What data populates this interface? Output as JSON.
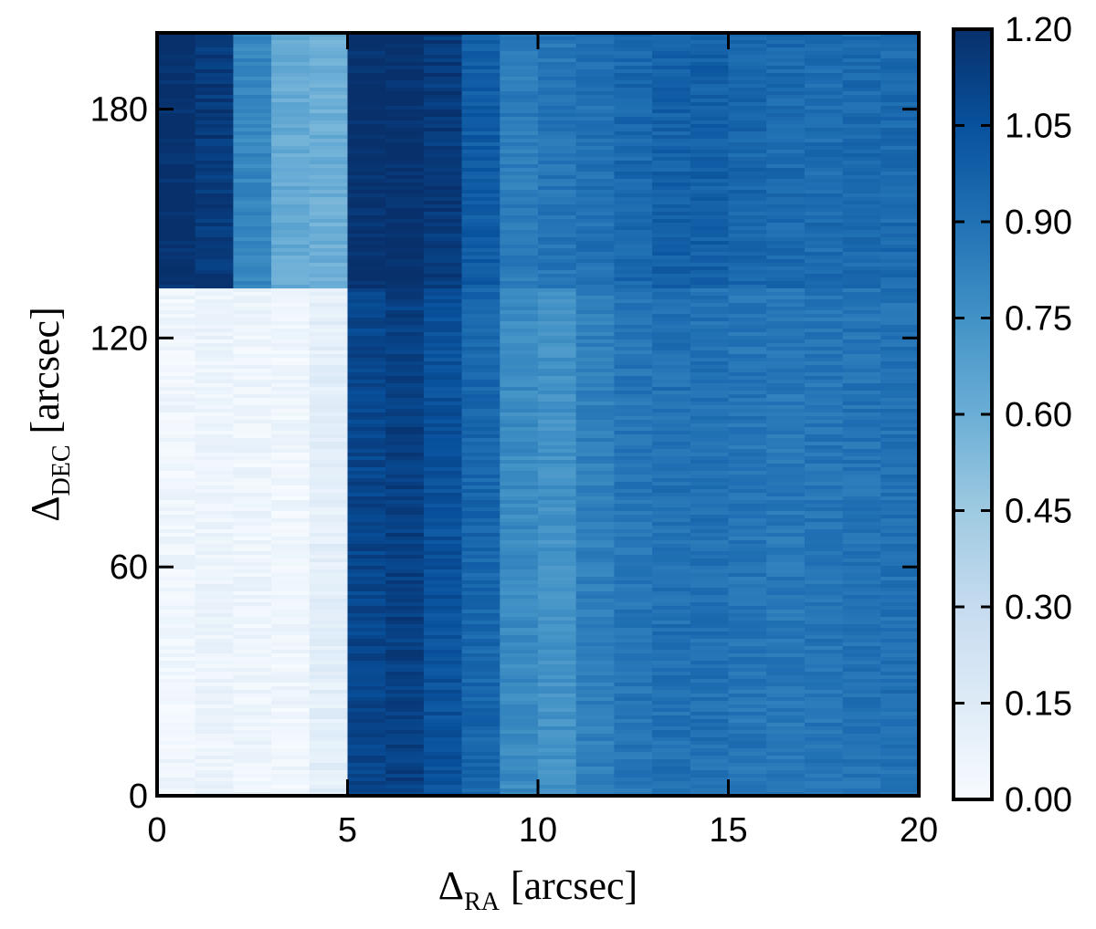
{
  "chart_data": {
    "type": "heatmap",
    "title": "",
    "xlabel": {
      "main": "Δ",
      "sub": "RA",
      "unit": "[arcsec]"
    },
    "ylabel": {
      "main": "Δ",
      "sub": "DEC",
      "unit": "[arcsec]"
    },
    "xlim": [
      0,
      20
    ],
    "ylim": [
      0,
      200
    ],
    "x_ticks": [
      0,
      5,
      10,
      15,
      20
    ],
    "x_tick_labels": [
      "0",
      "5",
      "10",
      "15",
      "20"
    ],
    "y_ticks": [
      0,
      60,
      120,
      180
    ],
    "y_tick_labels": [
      "0",
      "60",
      "120",
      "180"
    ],
    "colorbar": {
      "range": [
        0.0,
        1.2
      ],
      "ticks": [
        0.0,
        0.15,
        0.3,
        0.45,
        0.6,
        0.75,
        0.9,
        1.05,
        1.2
      ],
      "tick_labels": [
        "0.00",
        "0.15",
        "0.30",
        "0.45",
        "0.60",
        "0.75",
        "0.90",
        "1.05",
        "1.20"
      ],
      "colormap": "Blues",
      "colors": [
        "#f7fbff",
        "#deebf7",
        "#c6dbef",
        "#9ecae1",
        "#6baed6",
        "#4292c6",
        "#2171b5",
        "#08519c",
        "#08306b"
      ]
    },
    "columns_x": [
      0.5,
      1.5,
      2.5,
      3.5,
      4.5,
      5.5,
      6.5,
      7.5,
      8.5,
      9.5,
      10.5,
      11.5,
      12.5,
      13.5,
      14.5,
      15.5,
      16.5,
      17.5,
      18.5,
      19.5
    ],
    "regions": [
      {
        "y_range": [
          133,
          200
        ],
        "column_values": [
          1.2,
          1.15,
          0.8,
          0.62,
          0.6,
          1.2,
          1.2,
          1.15,
          1.0,
          0.85,
          0.88,
          0.9,
          0.94,
          0.97,
          0.98,
          0.95,
          0.93,
          0.92,
          0.93,
          0.93
        ]
      },
      {
        "y_range": [
          0,
          133
        ],
        "column_values": [
          0.05,
          0.07,
          0.06,
          0.05,
          0.12,
          1.1,
          1.13,
          1.05,
          0.95,
          0.78,
          0.75,
          0.83,
          0.88,
          0.9,
          0.9,
          0.88,
          0.87,
          0.88,
          0.89,
          0.9
        ]
      }
    ],
    "noise_amplitude": 0.05
  }
}
